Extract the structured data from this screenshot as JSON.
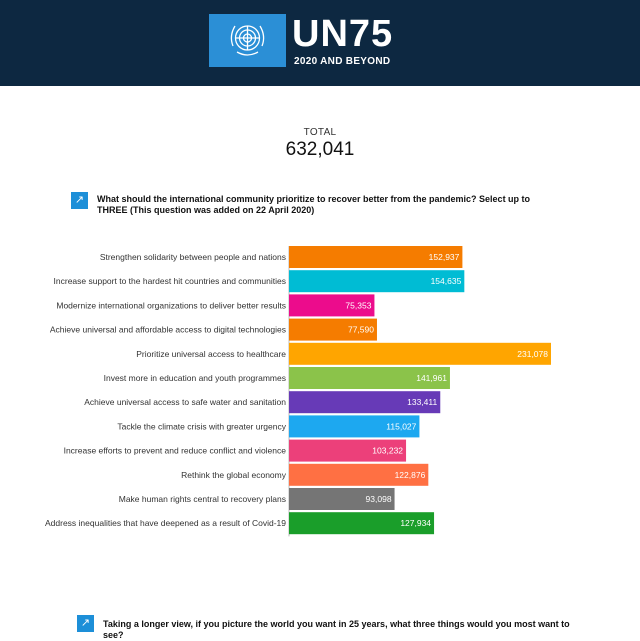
{
  "header": {
    "logo_text": "UN75",
    "tagline": "2020 AND BEYOND",
    "logo_icon": "un-emblem-icon",
    "background": "#0d2841",
    "logo_color": "#2b8fd6"
  },
  "total": {
    "label": "TOTAL",
    "value": "632,041"
  },
  "question1": {
    "text": "What should the international community prioritize to recover better from the pandemic? Select up to THREE (This question was added on 22 April 2020)"
  },
  "question2": {
    "text": "Taking a longer view, if you picture the world you want in 25 years, what three things would you most want to see?"
  },
  "chart_data": {
    "type": "bar",
    "orientation": "horizontal",
    "categories": [
      "Strengthen solidarity between people and nations",
      "Increase support to the hardest hit countries and communities",
      "Modernize international organizations to deliver better results",
      "Achieve universal and affordable access to digital technologies",
      "Prioritize universal access to healthcare",
      "Invest more in education and youth programmes",
      "Achieve universal access to safe water and sanitation",
      "Tackle the climate crisis with greater urgency",
      "Increase efforts to prevent and reduce conflict and violence",
      "Rethink the global economy",
      "Make human rights central to recovery plans",
      "Address inequalities that have deepened as a result of Covid-19"
    ],
    "values": [
      152937,
      154635,
      75353,
      77590,
      231078,
      141961,
      133411,
      115027,
      103232,
      122876,
      93098,
      127934
    ],
    "value_labels": [
      "152,937",
      "154,635",
      "75,353",
      "77,590",
      "231,078",
      "141,961",
      "133,411",
      "115,027",
      "103,232",
      "122,876",
      "93,098",
      "127,934"
    ],
    "colors": [
      "#f57c00",
      "#00bcd4",
      "#ec0c8c",
      "#f57c00",
      "#ffa500",
      "#8bc34a",
      "#673ab7",
      "#1da8f0",
      "#ec407a",
      "#ff7043",
      "#757575",
      "#1a9e2a"
    ],
    "xlim": [
      0,
      231078
    ],
    "grid": false,
    "legend": "none"
  }
}
